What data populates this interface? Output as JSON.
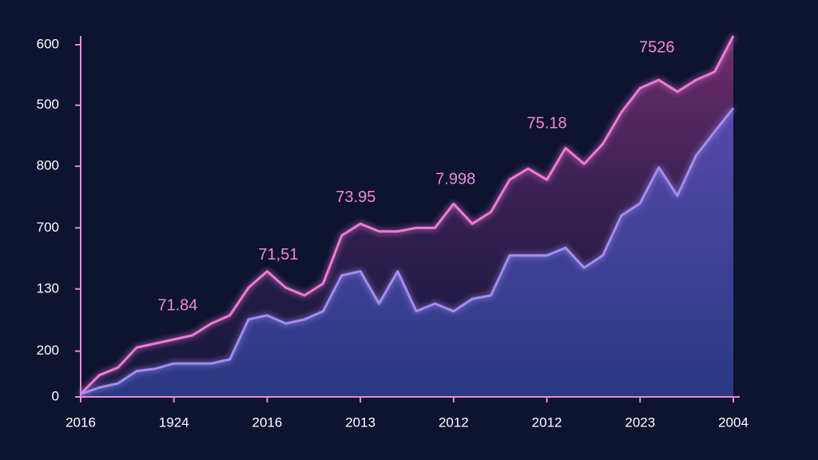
{
  "chart_data": {
    "type": "line",
    "x": [
      0,
      2,
      4,
      6,
      8,
      10,
      12,
      14,
      16,
      18,
      20,
      22,
      24,
      26,
      28,
      30,
      32,
      34,
      36,
      38,
      40,
      42,
      44,
      46,
      48,
      50,
      52,
      54,
      56,
      58,
      60,
      62,
      64,
      66,
      68,
      70
    ],
    "series": [
      {
        "color": "#ee7ad6",
        "values": [
          5,
          37,
          50,
          84,
          91,
          98,
          105,
          125,
          139,
          186,
          214,
          186,
          173,
          193,
          275,
          295,
          282,
          282,
          288,
          288,
          329,
          295,
          315,
          370,
          389,
          370,
          424,
          397,
          431,
          485,
          526,
          540,
          520,
          540,
          554,
          615
        ]
      },
      {
        "color": "#a48cf0",
        "values": [
          5,
          16,
          23,
          44,
          48,
          57,
          57,
          57,
          64,
          132,
          139,
          125,
          132,
          146,
          207,
          214,
          159,
          214,
          146,
          159,
          146,
          167,
          173,
          241,
          241,
          241,
          254,
          220,
          241,
          309,
          330,
          391,
          343,
          411,
          452,
          492
        ]
      }
    ],
    "xlim": [
      0,
      70
    ],
    "xticks": [
      {
        "value": 0,
        "label": "2016"
      },
      {
        "value": 10,
        "label": "1924"
      },
      {
        "value": 20,
        "label": "2016"
      },
      {
        "value": 30,
        "label": "2013"
      },
      {
        "value": 40,
        "label": "2012"
      },
      {
        "value": 50,
        "label": "2012"
      },
      {
        "value": 60,
        "label": "2023"
      },
      {
        "value": 70,
        "label": "2004"
      }
    ],
    "ylim": [
      0,
      615
    ],
    "yticks": [
      0,
      {
        "value": 78,
        "label": "200"
      },
      {
        "value": 184,
        "label": "130"
      },
      {
        "value": 288,
        "label": "700"
      },
      {
        "value": 393,
        "label": "800"
      },
      {
        "value": 497,
        "label": "500"
      },
      600
    ],
    "annotations": [
      {
        "text": "71.84",
        "x": 10.4,
        "y": 155
      },
      {
        "text": "71,51",
        "x": 21.2,
        "y": 241
      },
      {
        "text": "73.95",
        "x": 29.5,
        "y": 339
      },
      {
        "text": "7.998",
        "x": 40.2,
        "y": 370
      },
      {
        "text": "75.18",
        "x": 50,
        "y": 465
      },
      {
        "text": "7526",
        "x": 61.8,
        "y": 594
      }
    ]
  }
}
